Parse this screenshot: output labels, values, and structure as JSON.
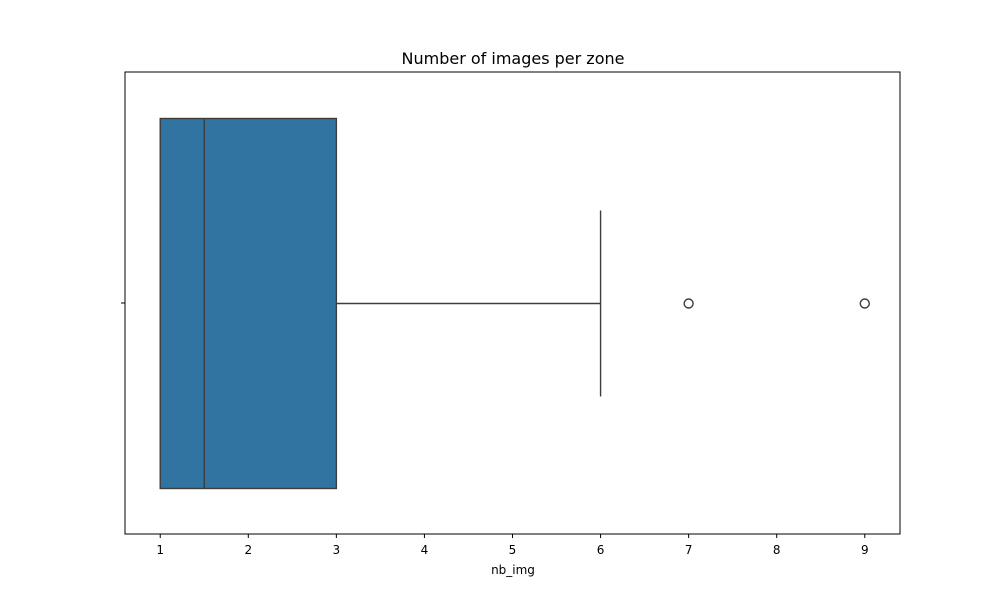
{
  "chart_data": {
    "type": "box",
    "title": "Number of images per zone",
    "xlabel": "nb_img",
    "ylabel": "",
    "orientation": "horizontal",
    "xlim": [
      0.6,
      9.4
    ],
    "x_ticks": [
      1,
      2,
      3,
      4,
      5,
      6,
      7,
      8,
      9
    ],
    "grid": false,
    "box": {
      "whisker_low": 1,
      "q1": 1,
      "median": 1.5,
      "q3": 3,
      "whisker_high": 6,
      "outliers": [
        7,
        9
      ],
      "color": "#3274a1"
    }
  }
}
